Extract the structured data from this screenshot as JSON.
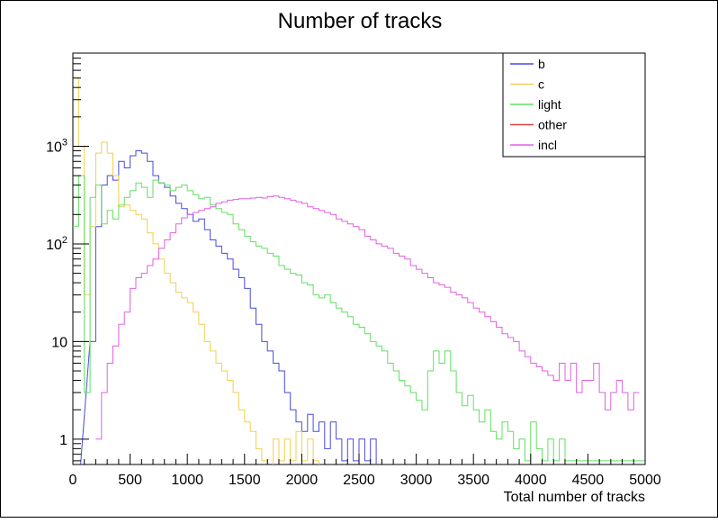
{
  "chart_data": {
    "type": "line",
    "title": "Number of tracks",
    "xlabel": "Total number of tracks",
    "ylabel": "",
    "xlim": [
      0,
      5000
    ],
    "ylim": [
      0.55,
      9000
    ],
    "yscale": "log",
    "x_tick_labels": [
      "0",
      "500",
      "1000",
      "1500",
      "2000",
      "2500",
      "3000",
      "3500",
      "4000",
      "4500",
      "5000"
    ],
    "y_tick_labels": [
      "1",
      "10",
      "10²",
      "10³"
    ],
    "grid": false,
    "legend_position": "top-right",
    "step": true,
    "series": [
      {
        "name": "b",
        "color": "#4a4adf",
        "x": [
          0,
          150,
          200,
          250,
          300,
          350,
          400,
          450,
          500,
          550,
          600,
          650,
          700,
          750,
          800,
          850,
          900,
          950,
          1000,
          1050,
          1100,
          1150,
          1200,
          1250,
          1300,
          1350,
          1400,
          1450,
          1500,
          1550,
          1600,
          1650,
          1700,
          1750,
          1800,
          1850,
          1900,
          1950,
          2000,
          2050,
          2100,
          2150,
          2200,
          2250,
          2300,
          2350,
          2400,
          2450,
          2500,
          2550,
          2600,
          2650
        ],
        "y": [
          0.3,
          10,
          150,
          400,
          500,
          450,
          700,
          600,
          800,
          900,
          850,
          700,
          500,
          420,
          380,
          310,
          260,
          230,
          200,
          170,
          180,
          140,
          110,
          95,
          80,
          70,
          55,
          45,
          35,
          22,
          15,
          10,
          8,
          6,
          5,
          3,
          2,
          1.5,
          1.2,
          1.8,
          1.2,
          1.5,
          0.8,
          1.5,
          1,
          0.6,
          1,
          0.6,
          1,
          0.6,
          1,
          0.3
        ]
      },
      {
        "name": "c",
        "color": "#f0d050",
        "x": [
          0,
          50,
          100,
          150,
          200,
          250,
          300,
          350,
          400,
          450,
          500,
          550,
          600,
          650,
          700,
          750,
          800,
          850,
          900,
          950,
          1000,
          1050,
          1100,
          1150,
          1200,
          1250,
          1300,
          1350,
          1400,
          1450,
          1500,
          1550,
          1600,
          1650,
          1700,
          1750,
          1800,
          1850,
          1900,
          1950,
          2000,
          2050,
          2100,
          2150
        ],
        "y": [
          5000,
          1000,
          30,
          150,
          850,
          1100,
          850,
          500,
          240,
          250,
          220,
          200,
          180,
          130,
          100,
          70,
          50,
          40,
          32,
          28,
          25,
          20,
          15,
          10,
          8,
          6,
          5,
          4,
          3,
          2,
          1.5,
          1.2,
          0.8,
          0.6,
          0.3,
          1,
          0.6,
          1,
          0.6,
          1.2,
          0.6,
          1,
          0.6,
          0.3
        ]
      },
      {
        "name": "light",
        "color": "#60e060",
        "x": [
          0,
          50,
          100,
          150,
          200,
          250,
          300,
          350,
          400,
          450,
          500,
          550,
          600,
          650,
          700,
          750,
          800,
          850,
          900,
          950,
          1000,
          1050,
          1100,
          1150,
          1200,
          1250,
          1300,
          1350,
          1400,
          1450,
          1500,
          1550,
          1600,
          1650,
          1700,
          1750,
          1800,
          1850,
          1900,
          1950,
          2000,
          2050,
          2100,
          2150,
          2200,
          2250,
          2300,
          2350,
          2400,
          2450,
          2500,
          2550,
          2600,
          2650,
          2700,
          2750,
          2800,
          2850,
          2900,
          2950,
          3000,
          3050,
          3100,
          3150,
          3200,
          3250,
          3300,
          3350,
          3400,
          3450,
          3500,
          3550,
          3600,
          3650,
          3700,
          3750,
          3800,
          3850,
          3900,
          3950,
          4000,
          4050,
          4100,
          4150,
          4200,
          4250,
          4300,
          4350,
          4400,
          4450,
          4500,
          4550,
          4600,
          4650,
          4700,
          4750,
          4800,
          4850,
          4900,
          4950
        ],
        "y": [
          150,
          500,
          3,
          300,
          400,
          160,
          220,
          180,
          250,
          300,
          350,
          420,
          380,
          300,
          450,
          420,
          400,
          350,
          380,
          400,
          350,
          320,
          290,
          300,
          250,
          230,
          210,
          200,
          160,
          140,
          120,
          105,
          95,
          90,
          80,
          75,
          60,
          55,
          50,
          48,
          40,
          38,
          30,
          28,
          30,
          25,
          22,
          20,
          18,
          15,
          14,
          12,
          10,
          9,
          8,
          6,
          5,
          4,
          3.5,
          3,
          2.5,
          2,
          5,
          8,
          6,
          8,
          5,
          3,
          2.2,
          2.8,
          2,
          1.5,
          2,
          1.2,
          1,
          1.5,
          1.2,
          0.8,
          1,
          0.6,
          1.5,
          0.8,
          0.6,
          1,
          0.6,
          1,
          0.6,
          0.6,
          0.6,
          0.6,
          0.6,
          0.6,
          0.6,
          0.6,
          0.6,
          0.6,
          0.6,
          0.6,
          0.6,
          0.6
        ]
      },
      {
        "name": "other",
        "color": "#e04040",
        "x": [],
        "y": []
      },
      {
        "name": "incl",
        "color": "#e060e0",
        "x": [
          200,
          250,
          300,
          350,
          400,
          450,
          500,
          550,
          600,
          650,
          700,
          750,
          800,
          850,
          900,
          950,
          1000,
          1050,
          1100,
          1150,
          1200,
          1250,
          1300,
          1350,
          1400,
          1450,
          1500,
          1550,
          1600,
          1650,
          1700,
          1750,
          1800,
          1850,
          1900,
          1950,
          2000,
          2050,
          2100,
          2150,
          2200,
          2250,
          2300,
          2350,
          2400,
          2450,
          2500,
          2550,
          2600,
          2650,
          2700,
          2750,
          2800,
          2850,
          2900,
          2950,
          3000,
          3050,
          3100,
          3150,
          3200,
          3250,
          3300,
          3350,
          3400,
          3450,
          3500,
          3550,
          3600,
          3650,
          3700,
          3750,
          3800,
          3850,
          3900,
          3950,
          4000,
          4050,
          4100,
          4150,
          4200,
          4250,
          4300,
          4350,
          4400,
          4450,
          4500,
          4550,
          4600,
          4650,
          4700,
          4750,
          4800,
          4850,
          4900
        ],
        "y": [
          1,
          3,
          6,
          9,
          15,
          20,
          35,
          45,
          50,
          60,
          70,
          90,
          110,
          130,
          160,
          185,
          200,
          210,
          220,
          230,
          240,
          260,
          270,
          280,
          285,
          290,
          290,
          295,
          300,
          295,
          305,
          310,
          300,
          290,
          280,
          270,
          260,
          240,
          230,
          220,
          210,
          200,
          180,
          170,
          160,
          150,
          140,
          120,
          110,
          100,
          95,
          90,
          80,
          75,
          70,
          60,
          55,
          50,
          45,
          40,
          38,
          36,
          32,
          30,
          28,
          25,
          22,
          20,
          18,
          16,
          14,
          12,
          11,
          10,
          8,
          7,
          6,
          5.5,
          5,
          4.5,
          4,
          6,
          4,
          6,
          3,
          4,
          4,
          6,
          3,
          2,
          3,
          4,
          3,
          2,
          3
        ]
      }
    ]
  }
}
